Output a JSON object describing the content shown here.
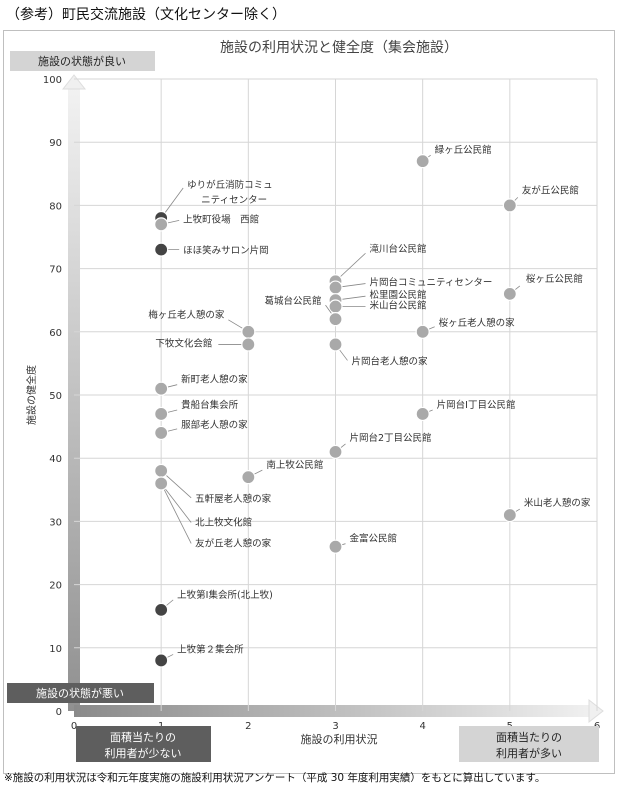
{
  "page": {
    "caption": "（参考）町民交流施設（文化センター除く）",
    "footnote": "※施設の利用状況は令和元年度実施の施設利用状況アンケート（平成 30 年度利用実績）をもとに算出しています。"
  },
  "chart_data": {
    "type": "scatter",
    "title": "施設の利用状況と健全度（集会施設）",
    "xlabel": "施設の利用状況",
    "ylabel": "施設の健全度",
    "xlim": [
      0,
      6
    ],
    "ylim": [
      0,
      100
    ],
    "x_ticks": [
      "0",
      "1",
      "2",
      "3",
      "4",
      "5",
      "6"
    ],
    "y_ticks": [
      "0",
      "10",
      "20",
      "30",
      "40",
      "50",
      "60",
      "70",
      "80",
      "90",
      "100"
    ],
    "grid": true,
    "labels": {
      "top_good": "施設の状態が良い",
      "bottom_bad": "施設の状態が悪い",
      "x_low": "面積当たりの利用者が少ない",
      "x_high": "面積当たりの利用者が多い"
    },
    "colors": {
      "point_light": "#a9a9a9",
      "point_dark": "#444444",
      "leader": "#888888",
      "grid": "#d6d6d6"
    },
    "points": [
      {
        "name": "緑ヶ丘公民館",
        "x": 4,
        "y": 87
      },
      {
        "name": "友が丘公民館",
        "x": 5,
        "y": 80
      },
      {
        "name": "ゆりが丘消防コミュニティセンター",
        "x": 1,
        "y": 78,
        "dark": true
      },
      {
        "name": "上牧町役場　西館",
        "x": 1,
        "y": 77
      },
      {
        "name": "ほほ笑みサロン片岡",
        "x": 1,
        "y": 73,
        "dark": true
      },
      {
        "name": "滝川台公民館",
        "x": 3,
        "y": 68
      },
      {
        "name": "片岡台コミュニティセンター",
        "x": 3,
        "y": 67
      },
      {
        "name": "松里園公民館",
        "x": 3,
        "y": 65
      },
      {
        "name": "米山台公民館",
        "x": 3,
        "y": 64
      },
      {
        "name": "葛城台公民館",
        "x": 3,
        "y": 62
      },
      {
        "name": "桜ヶ丘公民館",
        "x": 5,
        "y": 66
      },
      {
        "name": "梅ヶ丘老人憩の家",
        "x": 2,
        "y": 60
      },
      {
        "name": "下牧文化会館",
        "x": 2,
        "y": 58
      },
      {
        "name": "桜ヶ丘老人憩の家",
        "x": 4,
        "y": 60
      },
      {
        "name": "片岡台老人憩の家",
        "x": 3,
        "y": 58
      },
      {
        "name": "新町老人憩の家",
        "x": 1,
        "y": 51
      },
      {
        "name": "貴船台集会所",
        "x": 1,
        "y": 47
      },
      {
        "name": "服部老人憩の家",
        "x": 1,
        "y": 44
      },
      {
        "name": "片岡台Ⅰ丁目公民館",
        "x": 4,
        "y": 47
      },
      {
        "name": "片岡台2丁目公民館",
        "x": 3,
        "y": 41
      },
      {
        "name": "南上牧公民館",
        "x": 2,
        "y": 37
      },
      {
        "name": "五軒屋老人憩の家",
        "x": 1,
        "y": 38
      },
      {
        "name": "北上牧文化館",
        "x": 1,
        "y": 36
      },
      {
        "name": "友が丘老人憩の家",
        "x": 1,
        "y": 36
      },
      {
        "name": "米山老人憩の家",
        "x": 5,
        "y": 31
      },
      {
        "name": "金富公民館",
        "x": 3,
        "y": 26
      },
      {
        "name": "上牧第Ⅰ集会所(北上牧)",
        "x": 1,
        "y": 16,
        "dark": true
      },
      {
        "name": "上牧第２集会所",
        "x": 1,
        "y": 8,
        "dark": true
      }
    ]
  }
}
